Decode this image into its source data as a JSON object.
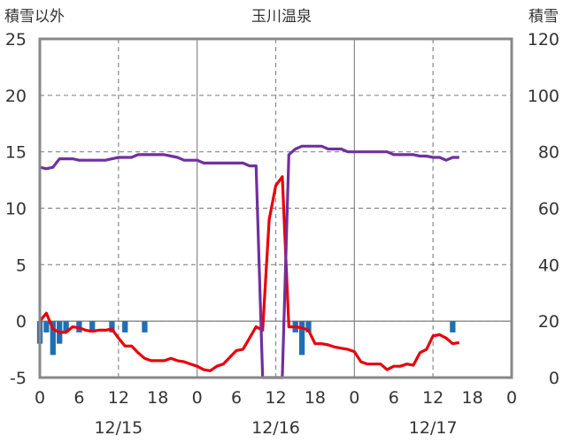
{
  "chart_data": {
    "type": "line",
    "title": "玉川温泉",
    "left_axis": {
      "label": "積雪以外",
      "range": [
        -5,
        25
      ],
      "ticks": [
        "-5",
        "0",
        "5",
        "10",
        "15",
        "20",
        "25"
      ]
    },
    "right_axis": {
      "label": "積雪",
      "range": [
        0,
        120
      ],
      "ticks": [
        "0",
        "20",
        "40",
        "60",
        "80",
        "100",
        "120"
      ]
    },
    "x_axis": {
      "range_hours": [
        0,
        72
      ],
      "hour_ticks": [
        "0",
        "6",
        "12",
        "18",
        "0",
        "6",
        "12",
        "18",
        "0",
        "6",
        "12",
        "18",
        "0"
      ],
      "day_labels": [
        {
          "label": "12/15",
          "hour": 12
        },
        {
          "label": "12/16",
          "hour": 36
        },
        {
          "label": "12/17",
          "hour": 60
        }
      ]
    },
    "grid": true,
    "colors": {
      "temperature": "#e8000b",
      "snow_depth": "#7030a0",
      "precipitation": "#1f6fb5",
      "axis_frame": "#888888",
      "grid": "#888888"
    },
    "series": [
      {
        "axis": "left",
        "kind": "bar",
        "points": [
          [
            0,
            -2
          ],
          [
            1,
            -1
          ],
          [
            2,
            -3
          ],
          [
            3,
            -2
          ],
          [
            4,
            -1
          ],
          [
            6,
            -1
          ],
          [
            8,
            -1
          ],
          [
            11,
            -1
          ],
          [
            13,
            -1
          ],
          [
            16,
            -1
          ],
          [
            39,
            -1
          ],
          [
            40,
            -3
          ],
          [
            41,
            -1
          ],
          [
            63,
            -1
          ]
        ]
      },
      {
        "axis": "left",
        "kind": "line",
        "points": [
          [
            0,
            0
          ],
          [
            1,
            0.7
          ],
          [
            2,
            -0.7
          ],
          [
            3,
            -1
          ],
          [
            4,
            -1
          ],
          [
            5,
            -0.5
          ],
          [
            6,
            -0.6
          ],
          [
            7,
            -0.8
          ],
          [
            8,
            -0.9
          ],
          [
            9,
            -0.8
          ],
          [
            10,
            -0.8
          ],
          [
            11,
            -0.7
          ],
          [
            12,
            -1.5
          ],
          [
            13,
            -2.2
          ],
          [
            14,
            -2.2
          ],
          [
            15,
            -2.8
          ],
          [
            16,
            -3.3
          ],
          [
            17,
            -3.5
          ],
          [
            18,
            -3.5
          ],
          [
            19,
            -3.5
          ],
          [
            20,
            -3.3
          ],
          [
            21,
            -3.5
          ],
          [
            22,
            -3.6
          ],
          [
            23,
            -3.8
          ],
          [
            24,
            -4
          ],
          [
            25,
            -4.3
          ],
          [
            26,
            -4.4
          ],
          [
            27,
            -4
          ],
          [
            28,
            -3.8
          ],
          [
            29,
            -3.2
          ],
          [
            30,
            -2.6
          ],
          [
            31,
            -2.5
          ],
          [
            32,
            -1.5
          ],
          [
            33,
            -0.5
          ],
          [
            34,
            -0.8
          ],
          [
            35,
            9
          ],
          [
            36,
            12
          ],
          [
            37,
            12.8
          ],
          [
            38,
            -0.5
          ],
          [
            39,
            -0.5
          ],
          [
            40,
            -0.6
          ],
          [
            41,
            -0.8
          ],
          [
            42,
            -2
          ],
          [
            43,
            -2
          ],
          [
            44,
            -2.1
          ],
          [
            45,
            -2.3
          ],
          [
            46,
            -2.4
          ],
          [
            47,
            -2.5
          ],
          [
            48,
            -2.7
          ],
          [
            49,
            -3.6
          ],
          [
            50,
            -3.8
          ],
          [
            51,
            -3.8
          ],
          [
            52,
            -3.8
          ],
          [
            53,
            -4.3
          ],
          [
            54,
            -4
          ],
          [
            55,
            -4
          ],
          [
            56,
            -3.8
          ],
          [
            57,
            -3.9
          ],
          [
            58,
            -2.8
          ],
          [
            59,
            -2.5
          ],
          [
            60,
            -1.3
          ],
          [
            61,
            -1.2
          ],
          [
            62,
            -1.5
          ],
          [
            63,
            -2
          ],
          [
            64,
            -1.9
          ]
        ]
      },
      {
        "axis": "right",
        "kind": "line",
        "points": [
          [
            0,
            74.5
          ],
          [
            1,
            74
          ],
          [
            2,
            74.5
          ],
          [
            3,
            77.5
          ],
          [
            4,
            77.5
          ],
          [
            5,
            77.5
          ],
          [
            6,
            77
          ],
          [
            7,
            77
          ],
          [
            8,
            77
          ],
          [
            9,
            77
          ],
          [
            10,
            77
          ],
          [
            11,
            77.5
          ],
          [
            12,
            78
          ],
          [
            13,
            78
          ],
          [
            14,
            78
          ],
          [
            15,
            79
          ],
          [
            16,
            79
          ],
          [
            17,
            79
          ],
          [
            18,
            79
          ],
          [
            19,
            79
          ],
          [
            20,
            78.5
          ],
          [
            21,
            78
          ],
          [
            22,
            77
          ],
          [
            23,
            77
          ],
          [
            24,
            77
          ],
          [
            25,
            76
          ],
          [
            26,
            76
          ],
          [
            27,
            76
          ],
          [
            28,
            76
          ],
          [
            29,
            76
          ],
          [
            30,
            76
          ],
          [
            31,
            76
          ],
          [
            32,
            75
          ],
          [
            33,
            75
          ],
          [
            34,
            0
          ],
          [
            35,
            0
          ],
          [
            36,
            0
          ],
          [
            37,
            0
          ],
          [
            38,
            79
          ],
          [
            39,
            81
          ],
          [
            40,
            82
          ],
          [
            41,
            82
          ],
          [
            42,
            82
          ],
          [
            43,
            82
          ],
          [
            44,
            81
          ],
          [
            45,
            81
          ],
          [
            46,
            81
          ],
          [
            47,
            80
          ],
          [
            48,
            80
          ],
          [
            49,
            80
          ],
          [
            50,
            80
          ],
          [
            51,
            80
          ],
          [
            52,
            80
          ],
          [
            53,
            80
          ],
          [
            54,
            79
          ],
          [
            55,
            79
          ],
          [
            56,
            79
          ],
          [
            57,
            79
          ],
          [
            58,
            78.5
          ],
          [
            59,
            78.5
          ],
          [
            60,
            78
          ],
          [
            61,
            78
          ],
          [
            62,
            77
          ],
          [
            63,
            78
          ],
          [
            64,
            78
          ]
        ]
      }
    ]
  }
}
